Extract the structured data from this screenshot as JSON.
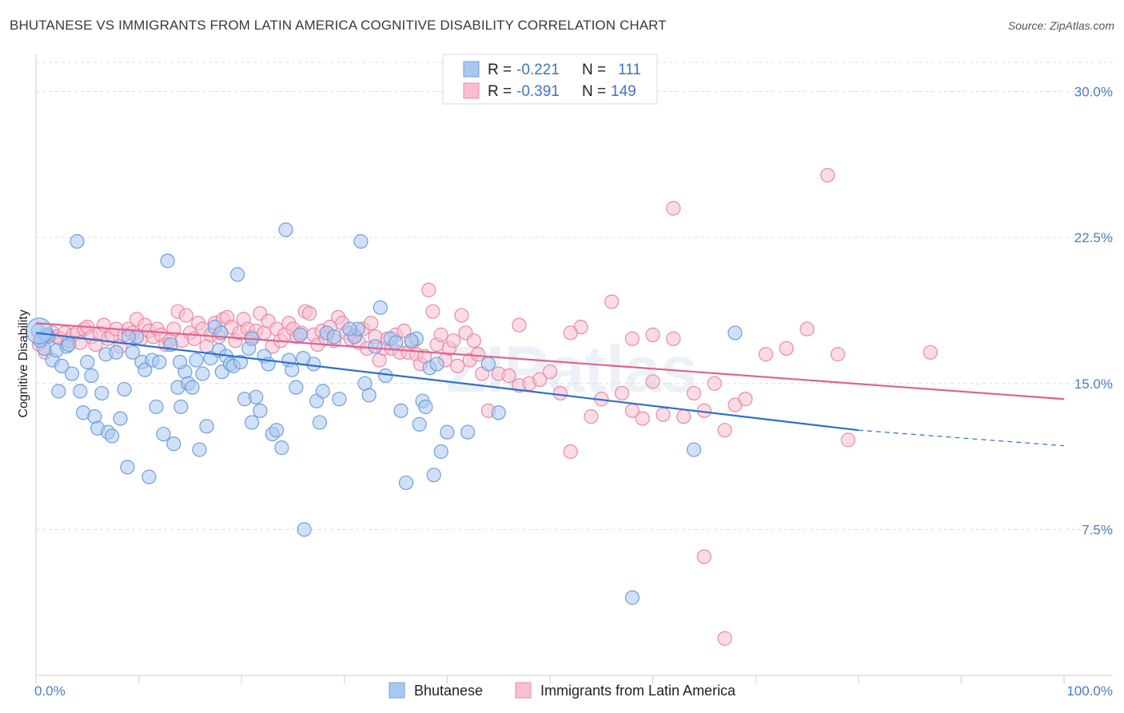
{
  "title": "BHUTANESE VS IMMIGRANTS FROM LATIN AMERICA COGNITIVE DISABILITY CORRELATION CHART",
  "source": "Source: ZipAtlas.com",
  "watermark": "ZIPatlas",
  "legend": {
    "rows": [
      {
        "r_label": "R = ",
        "r_value": "-0.221",
        "n_label": "N = ",
        "n_value": "111"
      },
      {
        "r_label": "R = ",
        "r_value": "-0.391",
        "n_label": "N = ",
        "n_value": "149"
      }
    ]
  },
  "colors": {
    "blue_fill": "#a9c8f0",
    "blue_stroke": "#6f9fdc",
    "blue_line": "#2e6fcc",
    "pink_fill": "#f7bfd0",
    "pink_stroke": "#e88aa8",
    "pink_line": "#e0628d",
    "tick_text": "#4a7cc7",
    "grid": "#dddddd"
  },
  "chart_data": {
    "type": "scatter",
    "title": "BHUTANESE VS IMMIGRANTS FROM LATIN AMERICA COGNITIVE DISABILITY CORRELATION CHART",
    "xlabel": "",
    "ylabel": "Cognitive Disability",
    "xlim": [
      0,
      100
    ],
    "ylim": [
      0,
      31.5
    ],
    "x_tick_labels": [
      "0.0%",
      "100.0%"
    ],
    "y_ticks": [
      7.5,
      15.0,
      22.5,
      30.0
    ],
    "y_tick_labels": [
      "7.5%",
      "15.0%",
      "22.5%",
      "30.0%"
    ],
    "grid": "horizontal dashed",
    "legend_position": "top-center",
    "series": [
      {
        "name": "Bhutanese",
        "color": "#a9c8f0",
        "r": -0.221,
        "n": 111,
        "trend": {
          "x0": 0,
          "y0": 17.6,
          "x1": 80,
          "y1": 12.6,
          "dashed_to_x": 100,
          "dashed_to_y": 11.8
        },
        "points": [
          [
            0.2,
            17.7
          ],
          [
            0.5,
            17.3
          ],
          [
            0.8,
            16.8
          ],
          [
            1.2,
            17.4
          ],
          [
            1.6,
            16.2
          ],
          [
            2.0,
            16.7
          ],
          [
            2.5,
            15.9
          ],
          [
            3.0,
            16.9
          ],
          [
            3.5,
            15.5
          ],
          [
            4.0,
            22.3
          ],
          [
            4.3,
            14.6
          ],
          [
            4.6,
            13.5
          ],
          [
            5.0,
            16.1
          ],
          [
            5.4,
            15.4
          ],
          [
            5.7,
            13.3
          ],
          [
            6.0,
            12.7
          ],
          [
            6.4,
            14.5
          ],
          [
            6.8,
            16.5
          ],
          [
            7.0,
            12.5
          ],
          [
            7.4,
            12.3
          ],
          [
            7.8,
            16.6
          ],
          [
            8.2,
            13.2
          ],
          [
            8.6,
            14.7
          ],
          [
            8.9,
            10.7
          ],
          [
            9.4,
            16.6
          ],
          [
            9.8,
            17.4
          ],
          [
            10.3,
            16.1
          ],
          [
            10.6,
            15.7
          ],
          [
            11.0,
            10.2
          ],
          [
            11.3,
            16.2
          ],
          [
            11.7,
            13.8
          ],
          [
            12.0,
            16.1
          ],
          [
            12.4,
            12.4
          ],
          [
            12.8,
            21.3
          ],
          [
            13.1,
            17.0
          ],
          [
            13.4,
            11.9
          ],
          [
            13.8,
            14.8
          ],
          [
            14.1,
            13.8
          ],
          [
            14.5,
            15.6
          ],
          [
            14.8,
            15.0
          ],
          [
            15.2,
            14.8
          ],
          [
            15.6,
            16.2
          ],
          [
            15.9,
            11.6
          ],
          [
            16.2,
            15.5
          ],
          [
            16.6,
            12.8
          ],
          [
            17.0,
            16.3
          ],
          [
            17.4,
            17.9
          ],
          [
            17.8,
            16.7
          ],
          [
            18.1,
            15.6
          ],
          [
            18.5,
            16.4
          ],
          [
            18.9,
            16.0
          ],
          [
            19.2,
            15.9
          ],
          [
            19.6,
            20.6
          ],
          [
            19.9,
            16.1
          ],
          [
            20.3,
            14.2
          ],
          [
            20.7,
            16.8
          ],
          [
            21.0,
            13.0
          ],
          [
            21.4,
            14.3
          ],
          [
            21.8,
            13.6
          ],
          [
            22.2,
            16.4
          ],
          [
            22.6,
            16.0
          ],
          [
            23.0,
            12.4
          ],
          [
            23.4,
            12.6
          ],
          [
            23.9,
            11.7
          ],
          [
            24.3,
            22.9
          ],
          [
            24.6,
            16.2
          ],
          [
            24.9,
            15.7
          ],
          [
            25.3,
            14.8
          ],
          [
            25.7,
            17.5
          ],
          [
            26.1,
            7.5
          ],
          [
            27.0,
            16.0
          ],
          [
            27.3,
            14.1
          ],
          [
            27.6,
            13.0
          ],
          [
            27.9,
            14.6
          ],
          [
            28.3,
            17.6
          ],
          [
            29.0,
            17.4
          ],
          [
            29.5,
            14.2
          ],
          [
            31.0,
            17.4
          ],
          [
            31.3,
            17.8
          ],
          [
            31.6,
            22.3
          ],
          [
            32.0,
            15.0
          ],
          [
            32.4,
            14.4
          ],
          [
            33.0,
            16.9
          ],
          [
            33.5,
            18.9
          ],
          [
            34.0,
            15.4
          ],
          [
            34.5,
            17.3
          ],
          [
            35.0,
            17.1
          ],
          [
            35.5,
            13.6
          ],
          [
            36.0,
            9.9
          ],
          [
            37.0,
            17.3
          ],
          [
            37.3,
            12.9
          ],
          [
            37.6,
            14.1
          ],
          [
            37.9,
            13.8
          ],
          [
            38.3,
            15.8
          ],
          [
            38.7,
            10.3
          ],
          [
            39.0,
            16.0
          ],
          [
            39.4,
            11.5
          ],
          [
            40.0,
            12.5
          ],
          [
            42.0,
            12.5
          ],
          [
            44.0,
            16.0
          ],
          [
            45.0,
            13.5
          ],
          [
            58.0,
            4.0
          ],
          [
            64.0,
            11.6
          ],
          [
            68.0,
            17.6
          ],
          [
            0.4,
            17.2
          ],
          [
            1.0,
            17.5
          ],
          [
            2.2,
            14.6
          ],
          [
            3.2,
            17.0
          ],
          [
            9.0,
            17.4
          ],
          [
            14.0,
            16.1
          ],
          [
            18.0,
            17.6
          ],
          [
            21.0,
            17.3
          ],
          [
            26.0,
            16.3
          ],
          [
            30.5,
            17.8
          ],
          [
            36.5,
            17.2
          ]
        ]
      },
      {
        "name": "Immigrants from Latin America",
        "color": "#f7bfd0",
        "r": -0.391,
        "n": 149,
        "trend": {
          "x0": 0,
          "y0": 18.1,
          "x1": 100,
          "y1": 14.2
        },
        "points": [
          [
            0.3,
            17.0
          ],
          [
            0.6,
            17.3
          ],
          [
            0.9,
            16.6
          ],
          [
            1.2,
            17.5
          ],
          [
            1.6,
            17.6
          ],
          [
            2.0,
            17.4
          ],
          [
            2.4,
            17.3
          ],
          [
            2.8,
            17.6
          ],
          [
            3.2,
            17.2
          ],
          [
            3.6,
            17.5
          ],
          [
            4.0,
            17.6
          ],
          [
            4.3,
            17.1
          ],
          [
            4.7,
            17.8
          ],
          [
            5.0,
            17.9
          ],
          [
            5.4,
            17.4
          ],
          [
            5.8,
            17.0
          ],
          [
            6.2,
            17.6
          ],
          [
            6.6,
            18.0
          ],
          [
            7.0,
            17.3
          ],
          [
            7.4,
            17.5
          ],
          [
            7.8,
            17.8
          ],
          [
            8.2,
            16.9
          ],
          [
            8.6,
            17.5
          ],
          [
            9.0,
            17.8
          ],
          [
            9.4,
            17.6
          ],
          [
            9.8,
            18.3
          ],
          [
            10.2,
            17.3
          ],
          [
            10.6,
            18.0
          ],
          [
            11.0,
            17.7
          ],
          [
            11.4,
            17.4
          ],
          [
            11.8,
            17.8
          ],
          [
            12.2,
            17.5
          ],
          [
            12.6,
            17.0
          ],
          [
            13.0,
            17.2
          ],
          [
            13.4,
            17.8
          ],
          [
            13.8,
            18.7
          ],
          [
            14.2,
            17.2
          ],
          [
            14.6,
            18.5
          ],
          [
            15.0,
            17.6
          ],
          [
            15.4,
            17.3
          ],
          [
            15.8,
            18.1
          ],
          [
            16.2,
            17.8
          ],
          [
            16.6,
            16.9
          ],
          [
            17.0,
            17.5
          ],
          [
            17.4,
            18.1
          ],
          [
            17.8,
            17.4
          ],
          [
            18.2,
            18.3
          ],
          [
            18.6,
            18.4
          ],
          [
            19.0,
            17.9
          ],
          [
            19.4,
            17.2
          ],
          [
            19.8,
            17.6
          ],
          [
            20.2,
            18.3
          ],
          [
            20.6,
            17.8
          ],
          [
            21.0,
            17.4
          ],
          [
            21.4,
            17.7
          ],
          [
            21.8,
            18.6
          ],
          [
            22.2,
            17.6
          ],
          [
            22.6,
            18.2
          ],
          [
            23.0,
            16.9
          ],
          [
            23.4,
            17.8
          ],
          [
            23.8,
            17.2
          ],
          [
            24.2,
            17.5
          ],
          [
            24.6,
            18.1
          ],
          [
            25.0,
            17.8
          ],
          [
            25.4,
            17.4
          ],
          [
            25.8,
            17.6
          ],
          [
            26.2,
            18.7
          ],
          [
            26.6,
            18.6
          ],
          [
            27.0,
            17.5
          ],
          [
            27.4,
            17.0
          ],
          [
            27.8,
            17.7
          ],
          [
            28.2,
            17.3
          ],
          [
            28.6,
            17.9
          ],
          [
            29.0,
            17.2
          ],
          [
            29.4,
            18.4
          ],
          [
            29.8,
            18.1
          ],
          [
            30.2,
            17.6
          ],
          [
            30.6,
            17.3
          ],
          [
            31.0,
            17.5
          ],
          [
            31.4,
            17.1
          ],
          [
            31.8,
            17.8
          ],
          [
            32.2,
            16.8
          ],
          [
            32.6,
            18.1
          ],
          [
            33.0,
            17.4
          ],
          [
            33.4,
            16.2
          ],
          [
            33.8,
            16.8
          ],
          [
            34.2,
            17.3
          ],
          [
            34.6,
            16.8
          ],
          [
            35.0,
            17.5
          ],
          [
            35.4,
            16.6
          ],
          [
            35.8,
            17.7
          ],
          [
            36.2,
            16.6
          ],
          [
            36.6,
            17.1
          ],
          [
            37.0,
            16.5
          ],
          [
            37.4,
            16.0
          ],
          [
            37.8,
            16.4
          ],
          [
            38.2,
            19.8
          ],
          [
            38.6,
            18.7
          ],
          [
            39.0,
            17.0
          ],
          [
            39.4,
            17.5
          ],
          [
            39.8,
            16.2
          ],
          [
            40.2,
            16.8
          ],
          [
            40.6,
            17.2
          ],
          [
            41.0,
            15.9
          ],
          [
            41.4,
            18.5
          ],
          [
            41.8,
            17.6
          ],
          [
            42.2,
            16.2
          ],
          [
            42.6,
            17.2
          ],
          [
            43.0,
            16.5
          ],
          [
            43.4,
            15.5
          ],
          [
            44.0,
            13.6
          ],
          [
            45.0,
            15.5
          ],
          [
            46.0,
            15.4
          ],
          [
            47.0,
            14.9
          ],
          [
            48.0,
            15.0
          ],
          [
            49.0,
            15.2
          ],
          [
            50.0,
            15.6
          ],
          [
            51.0,
            14.5
          ],
          [
            52.0,
            11.5
          ],
          [
            53.0,
            17.9
          ],
          [
            54.0,
            13.3
          ],
          [
            55.0,
            14.2
          ],
          [
            56.0,
            19.2
          ],
          [
            57.0,
            14.5
          ],
          [
            58.0,
            13.6
          ],
          [
            59.0,
            13.2
          ],
          [
            60.0,
            17.5
          ],
          [
            61.0,
            13.4
          ],
          [
            62.0,
            24.0
          ],
          [
            63.0,
            13.3
          ],
          [
            64.0,
            14.5
          ],
          [
            65.0,
            13.6
          ],
          [
            66.0,
            15.0
          ],
          [
            67.0,
            12.6
          ],
          [
            68.0,
            13.9
          ],
          [
            69.0,
            14.2
          ],
          [
            71.0,
            16.5
          ],
          [
            73.0,
            16.8
          ],
          [
            75.0,
            17.8
          ],
          [
            77.0,
            25.7
          ],
          [
            78.0,
            16.5
          ],
          [
            79.0,
            12.1
          ],
          [
            87.0,
            16.6
          ],
          [
            65.0,
            6.1
          ],
          [
            67.0,
            1.9
          ],
          [
            47.0,
            18.0
          ],
          [
            58.0,
            17.3
          ],
          [
            52.0,
            17.6
          ],
          [
            62.0,
            17.3
          ],
          [
            60.0,
            15.1
          ]
        ]
      }
    ]
  }
}
